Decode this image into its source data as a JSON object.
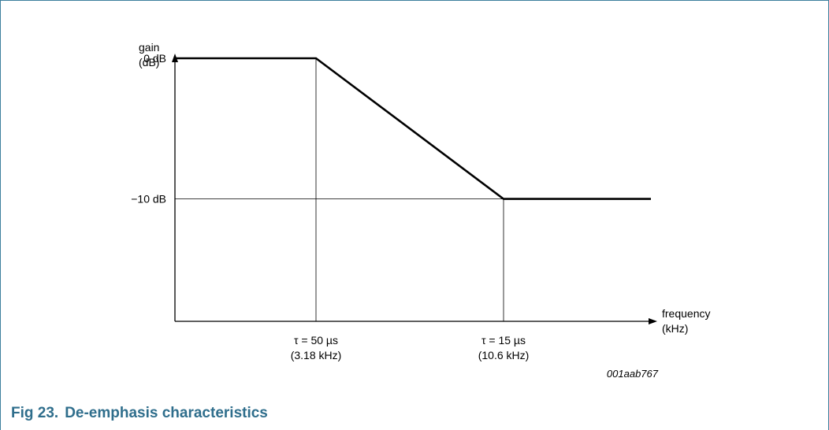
{
  "colors": {
    "frame": "#3d7f9e",
    "caption": "#2f6e8c",
    "curve": "#000000",
    "axes": "#000000",
    "text": "#000000"
  },
  "chart_data": {
    "type": "line",
    "title": "",
    "xlabel_line1": "frequency",
    "xlabel_line2": "(kHz)",
    "ylabel_line1": "gain",
    "ylabel_line2": "(dB)",
    "ylim": [
      -18.7,
      0
    ],
    "y_ticks": [
      {
        "value": 0,
        "label": "0 dB"
      },
      {
        "value": -10,
        "label": "−10 dB"
      }
    ],
    "x_ticks": [
      {
        "key": "f1",
        "value": 3.18,
        "line1": "τ = 50 µs",
        "line2": "(3.18 kHz)"
      },
      {
        "key": "f2",
        "value": 10.6,
        "line1": "τ = 15 µs",
        "line2": "(10.6 kHz)"
      }
    ],
    "series": [
      {
        "points": [
          {
            "x": "start",
            "y": 0
          },
          {
            "x": 3.18,
            "y": 0
          },
          {
            "x": 10.6,
            "y": -10
          },
          {
            "x": "end",
            "y": -10
          }
        ]
      }
    ],
    "annotation": "001aab767"
  },
  "caption": {
    "number": "Fig 23.",
    "title": "De-emphasis characteristics"
  }
}
